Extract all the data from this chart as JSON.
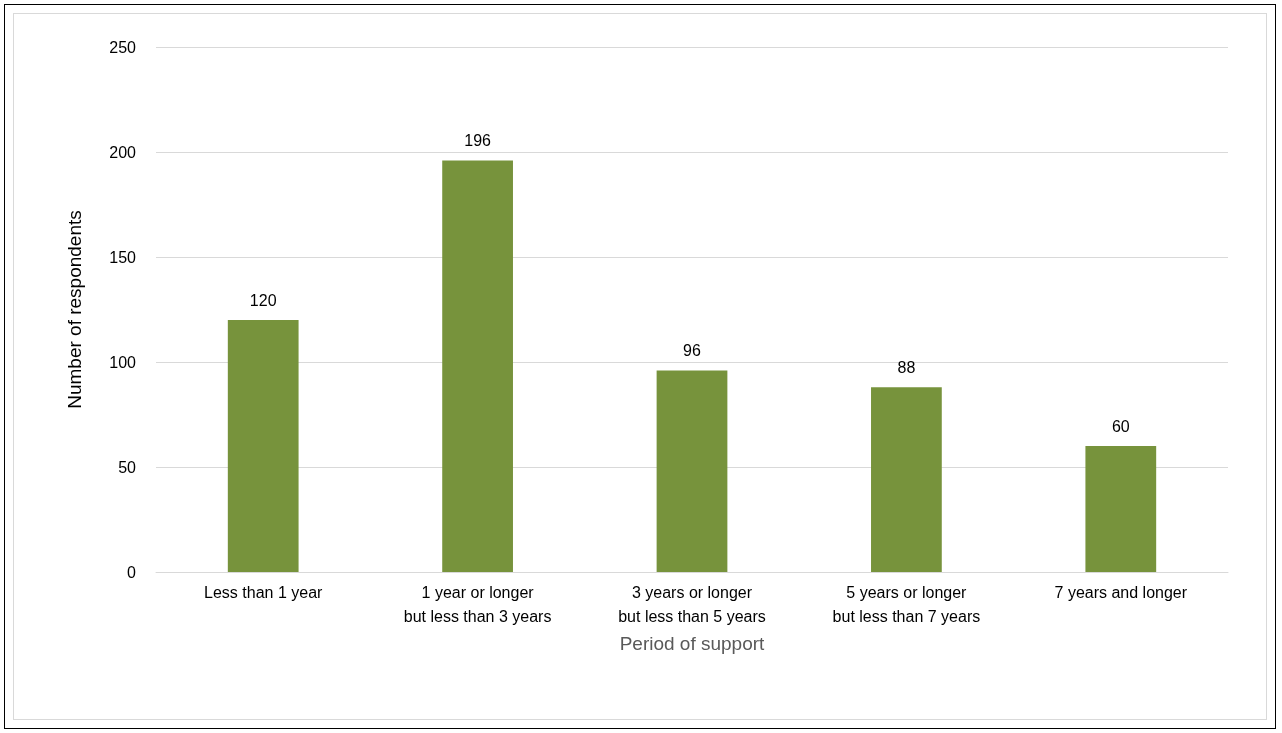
{
  "chart_data": {
    "type": "bar",
    "categories": [
      "Less than 1 year",
      "1 year or longer\nbut less than 3 years",
      "3 years or longer\nbut less than 5 years",
      "5 years or longer\nbut less than 7 years",
      "7 years and longer"
    ],
    "values": [
      120,
      196,
      96,
      88,
      60
    ],
    "color": "#77933c",
    "xlabel": "Period of support",
    "ylabel": "Number of respondents",
    "ylim": [
      0,
      250
    ],
    "yticks": [
      0,
      50,
      100,
      150,
      200,
      250
    ],
    "grid": "y",
    "data_labels": true
  }
}
